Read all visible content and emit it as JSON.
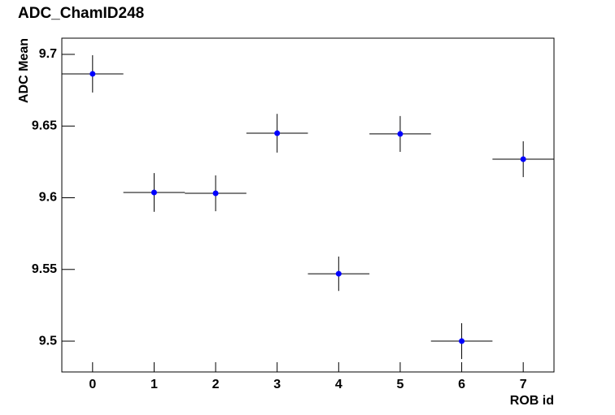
{
  "chart_data": {
    "type": "scatter",
    "title": "ADC_ChamID248",
    "x_label": "ROB id",
    "y_label": "ADC Mean",
    "x": [
      0,
      1,
      2,
      3,
      4,
      5,
      6,
      7
    ],
    "series": [
      {
        "color": "#0000ff",
        "values": [
          9.6864,
          9.6037,
          9.6031,
          9.645,
          9.547,
          9.6445,
          9.5,
          9.6269
        ],
        "yerr": [
          0.013,
          0.0135,
          0.0125,
          0.0135,
          0.012,
          0.0125,
          0.0125,
          0.0125
        ],
        "xerr": [
          0.5,
          0.5,
          0.5,
          0.5,
          0.5,
          0.5,
          0.5,
          0.5
        ]
      }
    ],
    "xlim": [
      -0.5,
      7.5
    ],
    "ylim": [
      9.4785,
      9.7113
    ],
    "xticks": [
      0,
      1,
      2,
      3,
      4,
      5,
      6,
      7
    ],
    "yticks": [
      9.5,
      9.55,
      9.6,
      9.65,
      9.7
    ],
    "grid": false
  }
}
